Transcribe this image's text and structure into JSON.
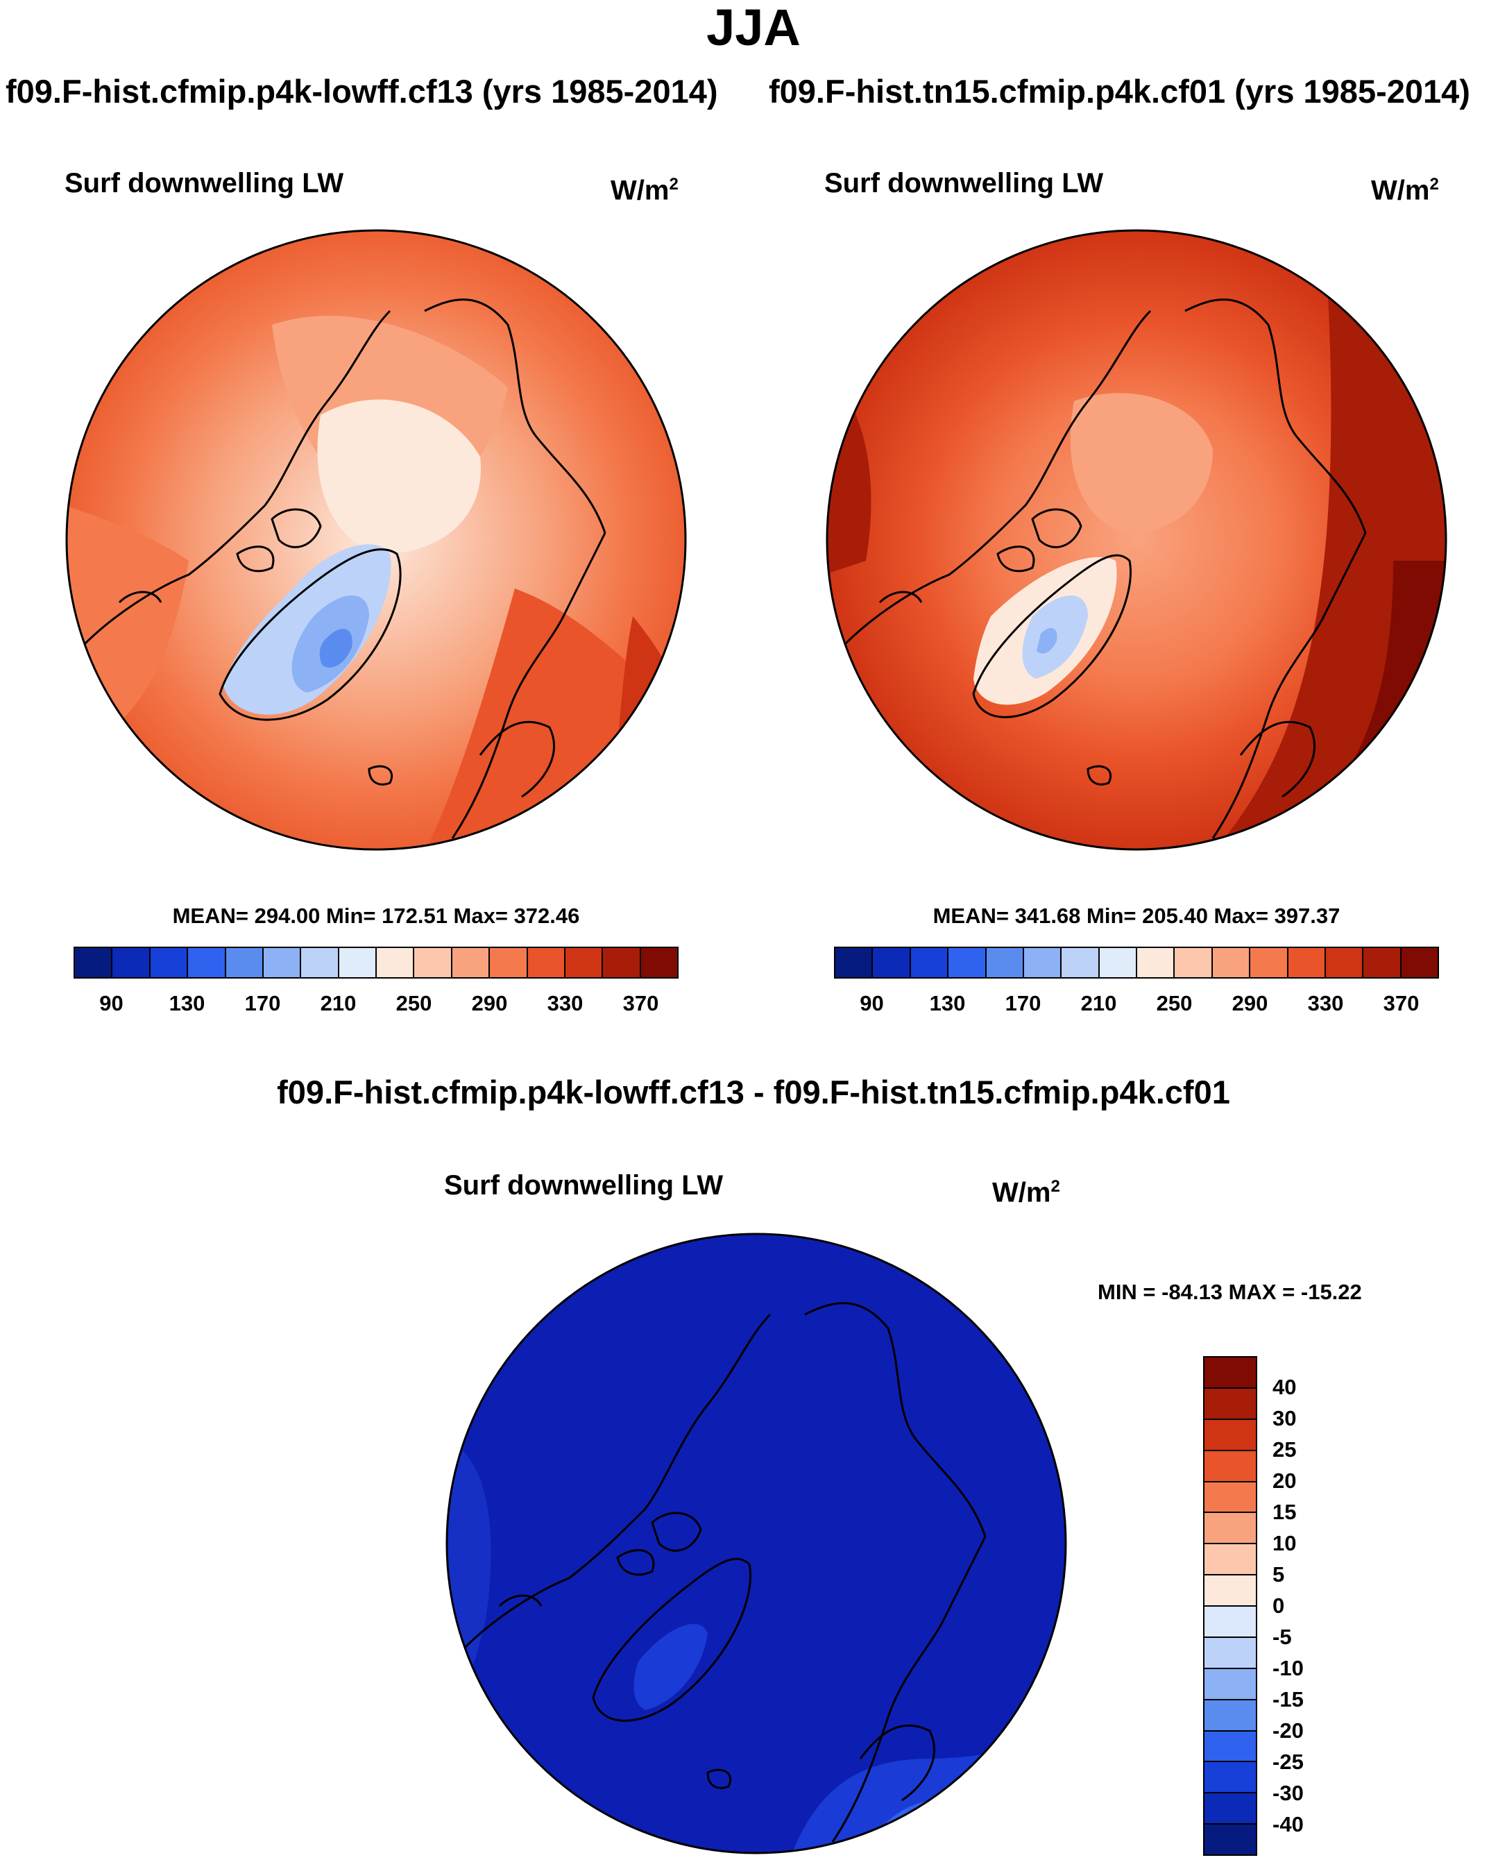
{
  "figure_title": "JJA",
  "case_left": "f09.F-hist.cfmip.p4k-lowff.cf13 (yrs 1985-2014)",
  "case_right": "f09.F-hist.tn15.cfmip.p4k.cf01 (yrs 1985-2014)",
  "diff_title": "f09.F-hist.cfmip.p4k-lowff.cf13 - f09.F-hist.tn15.cfmip.p4k.cf01",
  "panels": [
    {
      "variable": "Surf downwelling LW",
      "units_base": "W/m",
      "units_exp": "2",
      "stats": "MEAN= 294.00  Min= 172.51  Max= 372.46",
      "mean": 294.0,
      "min": 172.51,
      "max": 372.46
    },
    {
      "variable": "Surf downwelling LW",
      "units_base": "W/m",
      "units_exp": "2",
      "stats": "MEAN= 341.68  Min= 205.40  Max= 397.37",
      "mean": 341.68,
      "min": 205.4,
      "max": 397.37
    },
    {
      "variable": "Surf downwelling LW",
      "units_base": "W/m",
      "units_exp": "2",
      "stats": "MIN = -84.13 MAX = -15.22",
      "min": -84.13,
      "max": -15.22
    }
  ],
  "colorbar_abs": {
    "colors": [
      "#061b80",
      "#0b2ab8",
      "#1640d8",
      "#2f62ee",
      "#5a8cf0",
      "#8cb1f5",
      "#bcd2f8",
      "#e1ecfa",
      "#fde9dc",
      "#fcc7ac",
      "#f9a37e",
      "#f47a4e",
      "#e9542a",
      "#cf3414",
      "#a81d08",
      "#7f0b02"
    ],
    "ticks": [
      "90",
      "130",
      "170",
      "210",
      "250",
      "290",
      "330",
      "370"
    ],
    "levels": [
      90,
      110,
      130,
      150,
      170,
      190,
      210,
      230,
      250,
      270,
      290,
      310,
      330,
      350,
      370
    ]
  },
  "colorbar_diff": {
    "colors_top_to_bottom": [
      "#7f0b02",
      "#a81d08",
      "#cf3414",
      "#e9542a",
      "#f47a4e",
      "#f9a37e",
      "#fcc7ac",
      "#fde9dc",
      "#dce8fb",
      "#bcd2f8",
      "#8cb1f5",
      "#5a8cf0",
      "#2f62ee",
      "#1640d8",
      "#0b2ab8",
      "#061b80"
    ],
    "ticks_top_to_bottom": [
      "40",
      "30",
      "25",
      "20",
      "15",
      "10",
      "5",
      "0",
      "-5",
      "-10",
      "-15",
      "-20",
      "-25",
      "-30",
      "-40"
    ]
  },
  "colors": {
    "diff_dominant": "#0d1fb2",
    "diff_secondary": "#1a3bd6",
    "coast": "#000000"
  }
}
